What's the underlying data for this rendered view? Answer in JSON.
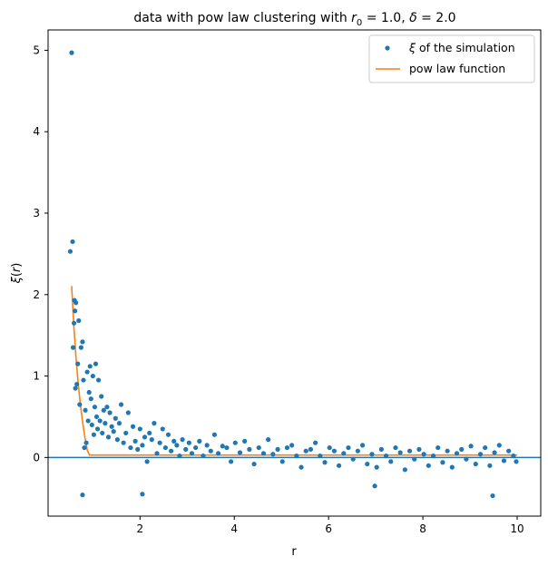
{
  "chart_data": {
    "type": "scatter",
    "title": "data with pow law clustering with r_0 = 1.0, δ = 2.0",
    "title_parts": {
      "prefix": "data with pow law clustering with ",
      "r_sym": "r",
      "r_sub": "0",
      "mid": " = 1.0, ",
      "delta_sym": "δ",
      "suffix": " = 2.0"
    },
    "xlabel": "r",
    "ylabel": "ξ(r)",
    "ylabel_parts": {
      "xi": "ξ",
      "open": "(",
      "r": "r",
      "close": ")"
    },
    "xlim": [
      0.05,
      10.5
    ],
    "ylim": [
      -0.72,
      5.25
    ],
    "x_ticks": [
      2,
      4,
      6,
      8,
      10
    ],
    "x_tick_labels": [
      "2",
      "4",
      "6",
      "8",
      "10"
    ],
    "y_ticks": [
      0,
      1,
      2,
      3,
      4,
      5
    ],
    "y_tick_labels": [
      "0",
      "1",
      "2",
      "3",
      "4",
      "5"
    ],
    "hline_y": 0,
    "grid": false,
    "legend_position": "top-right",
    "colors": {
      "scatter": "#1f77b4",
      "line": "#ff7f0e",
      "hline": "#1f77b4"
    },
    "series": [
      {
        "name": "ξ of the simulation",
        "legend_parts": {
          "xi": "ξ",
          "rest": " of the simulation"
        },
        "kind": "scatter",
        "x": [
          0.52,
          0.55,
          0.57,
          0.58,
          0.6,
          0.61,
          0.62,
          0.63,
          0.64,
          0.66,
          0.68,
          0.7,
          0.72,
          0.75,
          0.78,
          0.8,
          0.82,
          0.84,
          0.86,
          0.88,
          0.9,
          0.92,
          0.94,
          0.96,
          0.98,
          1.0,
          1.02,
          1.04,
          1.06,
          1.08,
          1.1,
          1.12,
          1.15,
          1.18,
          1.2,
          1.23,
          1.26,
          1.3,
          1.33,
          1.36,
          1.4,
          1.44,
          1.48,
          1.52,
          1.56,
          1.6,
          1.65,
          1.7,
          1.75,
          1.8,
          1.85,
          1.9,
          1.95,
          2.0,
          2.05,
          2.1,
          2.15,
          2.2,
          2.25,
          2.3,
          2.36,
          2.42,
          2.48,
          2.54,
          2.6,
          2.66,
          2.72,
          2.78,
          2.84,
          2.9,
          2.97,
          3.04,
          3.1,
          3.18,
          3.26,
          3.34,
          3.42,
          3.5,
          3.58,
          3.66,
          3.75,
          3.84,
          3.93,
          4.02,
          4.12,
          4.22,
          4.32,
          4.42,
          4.52,
          4.62,
          4.72,
          4.82,
          4.92,
          5.02,
          5.12,
          5.22,
          5.32,
          5.42,
          5.52,
          5.62,
          5.72,
          5.82,
          5.92,
          6.02,
          6.12,
          6.22,
          6.32,
          6.42,
          6.52,
          6.62,
          6.72,
          6.82,
          6.92,
          7.02,
          7.12,
          7.22,
          7.32,
          7.42,
          7.52,
          7.62,
          7.72,
          7.82,
          7.92,
          8.02,
          8.12,
          8.22,
          8.32,
          8.42,
          8.52,
          8.62,
          8.72,
          8.82,
          8.92,
          9.02,
          9.12,
          9.22,
          9.32,
          9.42,
          9.52,
          9.62,
          9.72,
          9.82,
          9.92,
          9.98
        ],
        "y": [
          2.53,
          4.97,
          2.65,
          1.35,
          1.65,
          1.93,
          1.8,
          0.85,
          1.9,
          0.9,
          1.15,
          1.68,
          0.65,
          1.35,
          1.42,
          0.95,
          0.12,
          0.58,
          0.18,
          1.05,
          0.45,
          0.8,
          1.12,
          0.72,
          0.4,
          1.0,
          0.28,
          0.62,
          1.15,
          0.5,
          0.35,
          0.95,
          0.45,
          0.75,
          0.3,
          0.58,
          0.42,
          0.62,
          0.25,
          0.55,
          0.38,
          0.32,
          0.48,
          0.22,
          0.42,
          0.65,
          0.18,
          0.3,
          0.55,
          0.12,
          0.38,
          0.2,
          0.1,
          0.35,
          0.15,
          0.25,
          -0.05,
          0.3,
          0.22,
          0.42,
          0.05,
          0.18,
          0.35,
          0.12,
          0.28,
          0.08,
          0.2,
          0.15,
          0.02,
          0.22,
          0.1,
          0.18,
          0.05,
          0.12,
          0.2,
          0.02,
          0.15,
          0.08,
          0.28,
          0.05,
          0.14,
          0.12,
          -0.05,
          0.18,
          0.06,
          0.2,
          0.1,
          -0.08,
          0.12,
          0.05,
          0.22,
          0.04,
          0.1,
          -0.05,
          0.12,
          0.15,
          0.02,
          -0.12,
          0.08,
          0.1,
          0.18,
          0.02,
          -0.06,
          0.12,
          0.08,
          -0.1,
          0.05,
          0.12,
          -0.02,
          0.08,
          0.15,
          -0.08,
          0.04,
          -0.12,
          0.1,
          0.02,
          -0.05,
          0.12,
          0.06,
          -0.15,
          0.08,
          -0.02,
          0.1,
          0.04,
          -0.1,
          0.02,
          0.12,
          -0.06,
          0.08,
          -0.12,
          0.05,
          0.1,
          -0.02,
          0.14,
          -0.08,
          0.04,
          0.12,
          -0.1,
          0.06,
          0.15,
          -0.04,
          0.08,
          0.02,
          -0.05
        ],
        "outliers_x": [
          0.78,
          2.05,
          6.98,
          9.48
        ],
        "outliers_y": [
          -0.46,
          -0.45,
          -0.35,
          -0.47
        ]
      },
      {
        "name": "pow law function",
        "kind": "line",
        "r0": 1.0,
        "delta": 2.0,
        "x_range": [
          0.55,
          10.0
        ]
      }
    ]
  }
}
